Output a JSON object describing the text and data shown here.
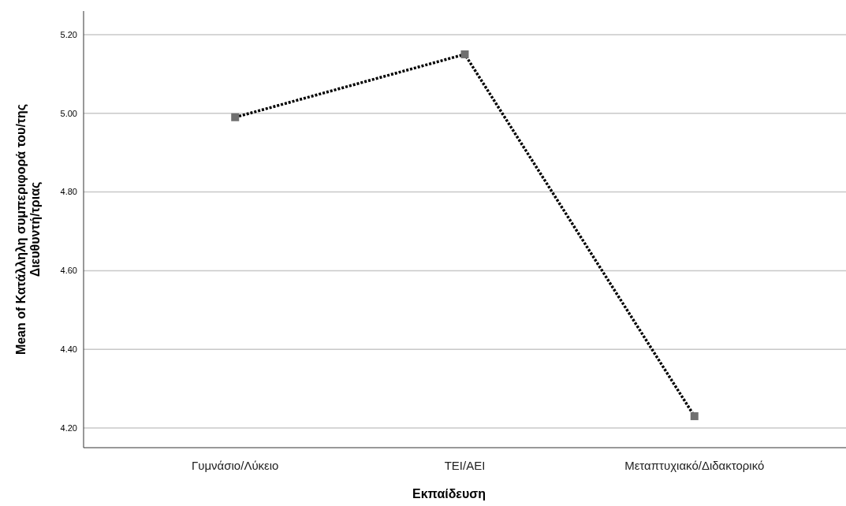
{
  "chart_data": {
    "type": "line",
    "xlabel": "Εκπαίδευση",
    "ylabel": "Mean of Κατάλληλη συμπεριφορά του/της Διευθυντή/τριας",
    "categories": [
      "Γυμνάσιο/Λύκειο",
      "ΤΕΙ/ΑΕΙ",
      "Μεταπτυχιακό/Διδακτορικό"
    ],
    "series": [
      {
        "color": "#000000",
        "values": [
          4.99,
          5.15,
          4.23
        ]
      }
    ],
    "ylim": [
      4.15,
      5.26
    ],
    "yticks": [
      {
        "value": 4.2,
        "label": "4.20"
      },
      {
        "value": 4.4,
        "label": "4.40"
      },
      {
        "value": 4.6,
        "label": "4.60"
      },
      {
        "value": 4.8,
        "label": "4.80"
      },
      {
        "value": 5.0,
        "label": "5.00"
      },
      {
        "value": 5.2,
        "label": "5.20"
      }
    ],
    "grid": "y",
    "marker": "square",
    "line_style": "dotted"
  }
}
